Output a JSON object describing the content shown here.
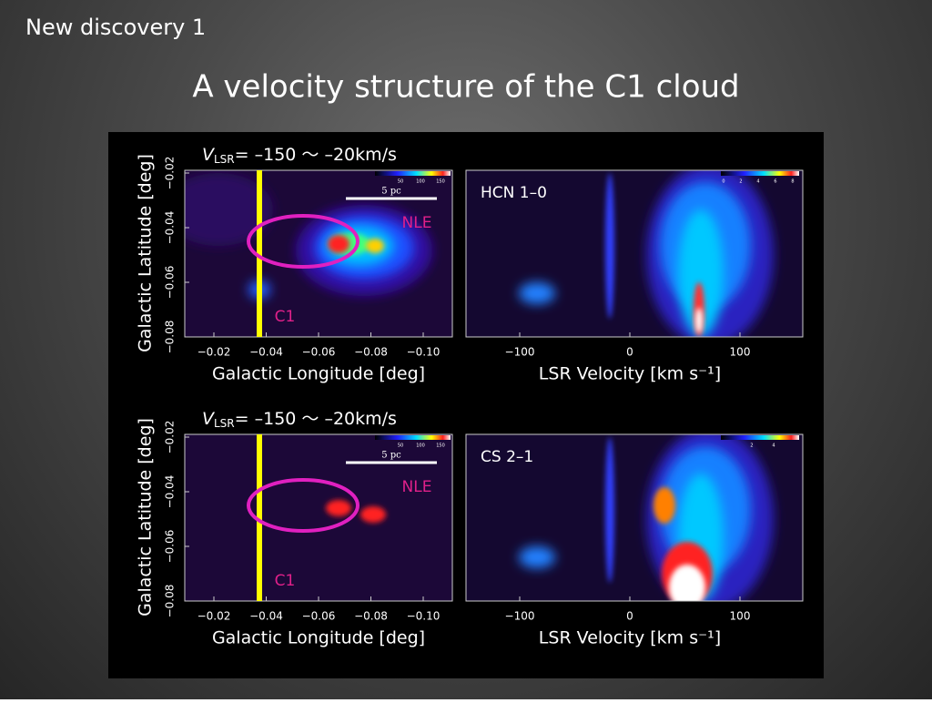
{
  "header": {
    "section": "New discovery 1",
    "title": "A velocity structure of the C1 cloud"
  },
  "rows": [
    {
      "velocity_label": {
        "symbol": "V",
        "subscript": "LSR",
        "range": "= –150 〜 –20km/s"
      },
      "map": {
        "y_axis_label": "Galactic Latitude  [deg]",
        "x_axis_label": "Galactic Longitude  [deg]",
        "yticks": [
          "−0.02",
          "−0.04",
          "−0.06",
          "−0.08"
        ],
        "xticks": [
          "−0.02",
          "−0.04",
          "−0.06",
          "−0.08",
          "−0.10"
        ],
        "scale_bar": "5 pc",
        "colorbar_ticks": [
          "50",
          "100",
          "150"
        ],
        "labels": [
          "NLE",
          "C1"
        ]
      },
      "pv": {
        "line": "HCN 1–0",
        "x_axis_label": "LSR Velocity  [km s⁻¹]",
        "xticks": [
          "−100",
          "0",
          "100"
        ],
        "colorbar_ticks": [
          "0",
          "2",
          "4",
          "6",
          "8"
        ]
      }
    },
    {
      "velocity_label": {
        "symbol": "V",
        "subscript": "LSR",
        "range": "= –150 〜 –20km/s"
      },
      "map": {
        "y_axis_label": "Galactic Latitude  [deg]",
        "x_axis_label": "Galactic Longitude  [deg]",
        "yticks": [
          "−0.02",
          "−0.04",
          "−0.06",
          "−0.08"
        ],
        "xticks": [
          "−0.02",
          "−0.04",
          "−0.06",
          "−0.08",
          "−0.10"
        ],
        "scale_bar": "5 pc",
        "colorbar_ticks": [
          "50",
          "100",
          "150"
        ],
        "labels": [
          "NLE",
          "C1"
        ]
      },
      "pv": {
        "line": "CS 2–1",
        "x_axis_label": "LSR Velocity  [km s⁻¹]",
        "xticks": [
          "−100",
          "0",
          "100"
        ],
        "colorbar_ticks": [
          "2",
          "4"
        ]
      }
    }
  ]
}
